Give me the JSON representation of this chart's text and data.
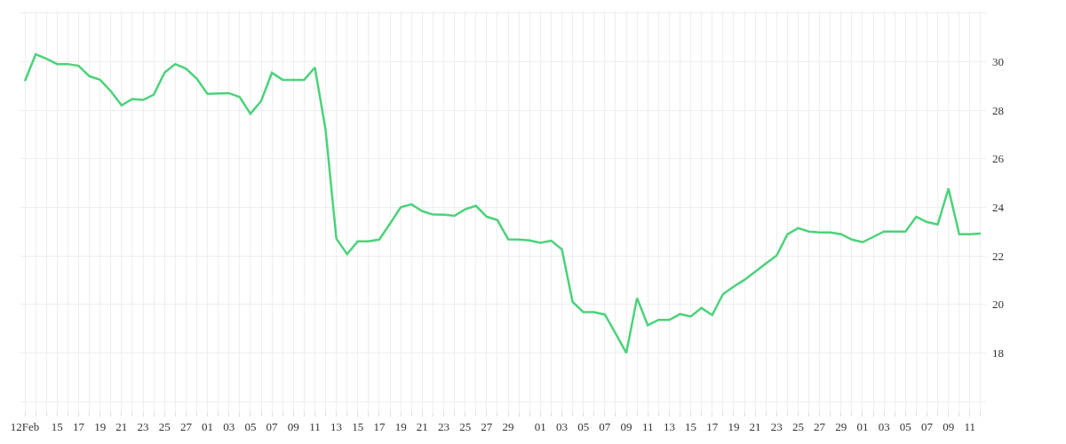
{
  "chart_data": {
    "type": "line",
    "x": [
      "--02-12",
      "--02-13",
      "--02-14",
      "--02-15",
      "--02-16",
      "--02-17",
      "--02-18",
      "--02-19",
      "--02-20",
      "--02-21",
      "--02-22",
      "--02-23",
      "--02-24",
      "--02-25",
      "--02-26",
      "--02-27",
      "--02-28",
      "--03-01",
      "--03-02",
      "--03-03",
      "--03-04",
      "--03-05",
      "--03-06",
      "--03-07",
      "--03-08",
      "--03-09",
      "--03-10",
      "--03-11",
      "--03-12",
      "--03-13",
      "--03-14",
      "--03-15",
      "--03-16",
      "--03-17",
      "--03-18",
      "--03-19",
      "--03-20",
      "--03-21",
      "--03-22",
      "--03-23",
      "--03-24",
      "--03-25",
      "--03-26",
      "--03-27",
      "--03-28",
      "--03-29",
      "--03-30",
      "--03-31",
      "--04-01",
      "--04-02",
      "--04-03",
      "--04-04",
      "--04-05",
      "--04-06",
      "--04-07",
      "--04-08",
      "--04-09",
      "--04-10",
      "--04-11",
      "--04-12",
      "--04-13",
      "--04-14",
      "--04-15",
      "--04-16",
      "--04-17",
      "--04-18",
      "--04-19",
      "--04-20",
      "--04-21",
      "--04-22",
      "--04-23",
      "--04-24",
      "--04-25",
      "--04-26",
      "--04-27",
      "--04-28",
      "--04-29",
      "--04-30",
      "--05-01",
      "--05-02",
      "--05-03",
      "--05-04",
      "--05-05",
      "--05-06",
      "--05-07",
      "--05-08",
      "--05-09",
      "--05-10",
      "--05-11",
      "--05-12"
    ],
    "series": [
      {
        "color": "#4cd27a",
        "values": [
          29.2,
          30.3,
          30.12,
          29.9,
          29.9,
          29.83,
          29.4,
          29.25,
          28.78,
          28.2,
          28.46,
          28.42,
          28.64,
          29.55,
          29.9,
          29.71,
          29.3,
          28.67,
          28.69,
          28.7,
          28.54,
          27.85,
          28.38,
          29.54,
          29.25,
          29.25,
          29.25,
          29.76,
          27.19,
          22.71,
          22.07,
          22.6,
          22.6,
          22.67,
          23.33,
          24.0,
          24.12,
          23.84,
          23.7,
          23.69,
          23.65,
          23.92,
          24.06,
          23.61,
          23.47,
          22.68,
          22.67,
          22.63,
          22.53,
          22.62,
          22.27,
          20.1,
          19.68,
          19.68,
          19.58,
          18.81,
          18.0,
          20.26,
          19.14,
          19.36,
          19.36,
          19.6,
          19.5,
          19.85,
          19.56,
          20.42,
          20.73,
          21.01,
          21.34,
          21.68,
          22.01,
          22.88,
          23.14,
          23.0,
          22.96,
          22.96,
          22.89,
          22.67,
          22.56,
          22.78,
          23.0,
          23.0,
          23.0,
          23.61,
          23.39,
          23.29,
          24.77,
          22.89,
          22.89,
          22.92
        ]
      }
    ],
    "xlim": [
      "--02-11T12:00",
      "--05-12T12:00"
    ],
    "xticks": [
      {
        "value": "--02-12",
        "label": "12Feb"
      },
      {
        "value": "--02-13",
        "label": null
      },
      {
        "value": "--02-14",
        "label": null
      },
      {
        "value": "--02-15",
        "label": "15"
      },
      {
        "value": "--02-16",
        "label": null
      },
      {
        "value": "--02-17",
        "label": "17"
      },
      {
        "value": "--02-18",
        "label": null
      },
      {
        "value": "--02-19",
        "label": "19"
      },
      {
        "value": "--02-20",
        "label": null
      },
      {
        "value": "--02-21",
        "label": "21"
      },
      {
        "value": "--02-22",
        "label": null
      },
      {
        "value": "--02-23",
        "label": "23"
      },
      {
        "value": "--02-24",
        "label": null
      },
      {
        "value": "--02-25",
        "label": "25"
      },
      {
        "value": "--02-26",
        "label": null
      },
      {
        "value": "--02-27",
        "label": "27"
      },
      {
        "value": "--02-28",
        "label": null
      },
      {
        "value": "--03-01",
        "label": "01"
      },
      {
        "value": "--03-02",
        "label": null
      },
      {
        "value": "--03-03",
        "label": "03"
      },
      {
        "value": "--03-04",
        "label": null
      },
      {
        "value": "--03-05",
        "label": "05"
      },
      {
        "value": "--03-06",
        "label": null
      },
      {
        "value": "--03-07",
        "label": "07"
      },
      {
        "value": "--03-08",
        "label": null
      },
      {
        "value": "--03-09",
        "label": "09"
      },
      {
        "value": "--03-10",
        "label": null
      },
      {
        "value": "--03-11",
        "label": "11"
      },
      {
        "value": "--03-12",
        "label": null
      },
      {
        "value": "--03-13",
        "label": "13"
      },
      {
        "value": "--03-14",
        "label": null
      },
      {
        "value": "--03-15",
        "label": "15"
      },
      {
        "value": "--03-16",
        "label": null
      },
      {
        "value": "--03-17",
        "label": "17"
      },
      {
        "value": "--03-18",
        "label": null
      },
      {
        "value": "--03-19",
        "label": "19"
      },
      {
        "value": "--03-20",
        "label": null
      },
      {
        "value": "--03-21",
        "label": "21"
      },
      {
        "value": "--03-22",
        "label": null
      },
      {
        "value": "--03-23",
        "label": "23"
      },
      {
        "value": "--03-24",
        "label": null
      },
      {
        "value": "--03-25",
        "label": "25"
      },
      {
        "value": "--03-26",
        "label": null
      },
      {
        "value": "--03-27",
        "label": "27"
      },
      {
        "value": "--03-28",
        "label": null
      },
      {
        "value": "--03-29",
        "label": "29"
      },
      {
        "value": "--03-30",
        "label": null
      },
      {
        "value": "--03-31",
        "label": null
      },
      {
        "value": "--04-01",
        "label": "01"
      },
      {
        "value": "--04-02",
        "label": null
      },
      {
        "value": "--04-03",
        "label": "03"
      },
      {
        "value": "--04-04",
        "label": null
      },
      {
        "value": "--04-05",
        "label": "05"
      },
      {
        "value": "--04-06",
        "label": null
      },
      {
        "value": "--04-07",
        "label": "07"
      },
      {
        "value": "--04-08",
        "label": null
      },
      {
        "value": "--04-09",
        "label": "09"
      },
      {
        "value": "--04-10",
        "label": null
      },
      {
        "value": "--04-11",
        "label": "11"
      },
      {
        "value": "--04-12",
        "label": null
      },
      {
        "value": "--04-13",
        "label": "13"
      },
      {
        "value": "--04-14",
        "label": null
      },
      {
        "value": "--04-15",
        "label": "15"
      },
      {
        "value": "--04-16",
        "label": null
      },
      {
        "value": "--04-17",
        "label": "17"
      },
      {
        "value": "--04-18",
        "label": null
      },
      {
        "value": "--04-19",
        "label": "19"
      },
      {
        "value": "--04-20",
        "label": null
      },
      {
        "value": "--04-21",
        "label": "21"
      },
      {
        "value": "--04-22",
        "label": null
      },
      {
        "value": "--04-23",
        "label": "23"
      },
      {
        "value": "--04-24",
        "label": null
      },
      {
        "value": "--04-25",
        "label": "25"
      },
      {
        "value": "--04-26",
        "label": null
      },
      {
        "value": "--04-27",
        "label": "27"
      },
      {
        "value": "--04-28",
        "label": null
      },
      {
        "value": "--04-29",
        "label": "29"
      },
      {
        "value": "--04-30",
        "label": null
      },
      {
        "value": "--05-01",
        "label": "01"
      },
      {
        "value": "--05-02",
        "label": null
      },
      {
        "value": "--05-03",
        "label": "03"
      },
      {
        "value": "--05-04",
        "label": null
      },
      {
        "value": "--05-05",
        "label": "05"
      },
      {
        "value": "--05-06",
        "label": null
      },
      {
        "value": "--05-07",
        "label": "07"
      },
      {
        "value": "--05-08",
        "label": null
      },
      {
        "value": "--05-09",
        "label": "09"
      },
      {
        "value": "--05-10",
        "label": null
      },
      {
        "value": "--05-11",
        "label": "11"
      },
      {
        "value": "--05-12",
        "label": null
      }
    ],
    "ylim": [
      15.6,
      32.1
    ],
    "yticks": [
      {
        "value": 16,
        "label": null
      },
      18,
      20,
      22,
      24,
      26,
      28,
      30,
      {
        "value": 32,
        "label": null
      }
    ],
    "grid": true,
    "marker": "none",
    "line_style": "solid"
  }
}
